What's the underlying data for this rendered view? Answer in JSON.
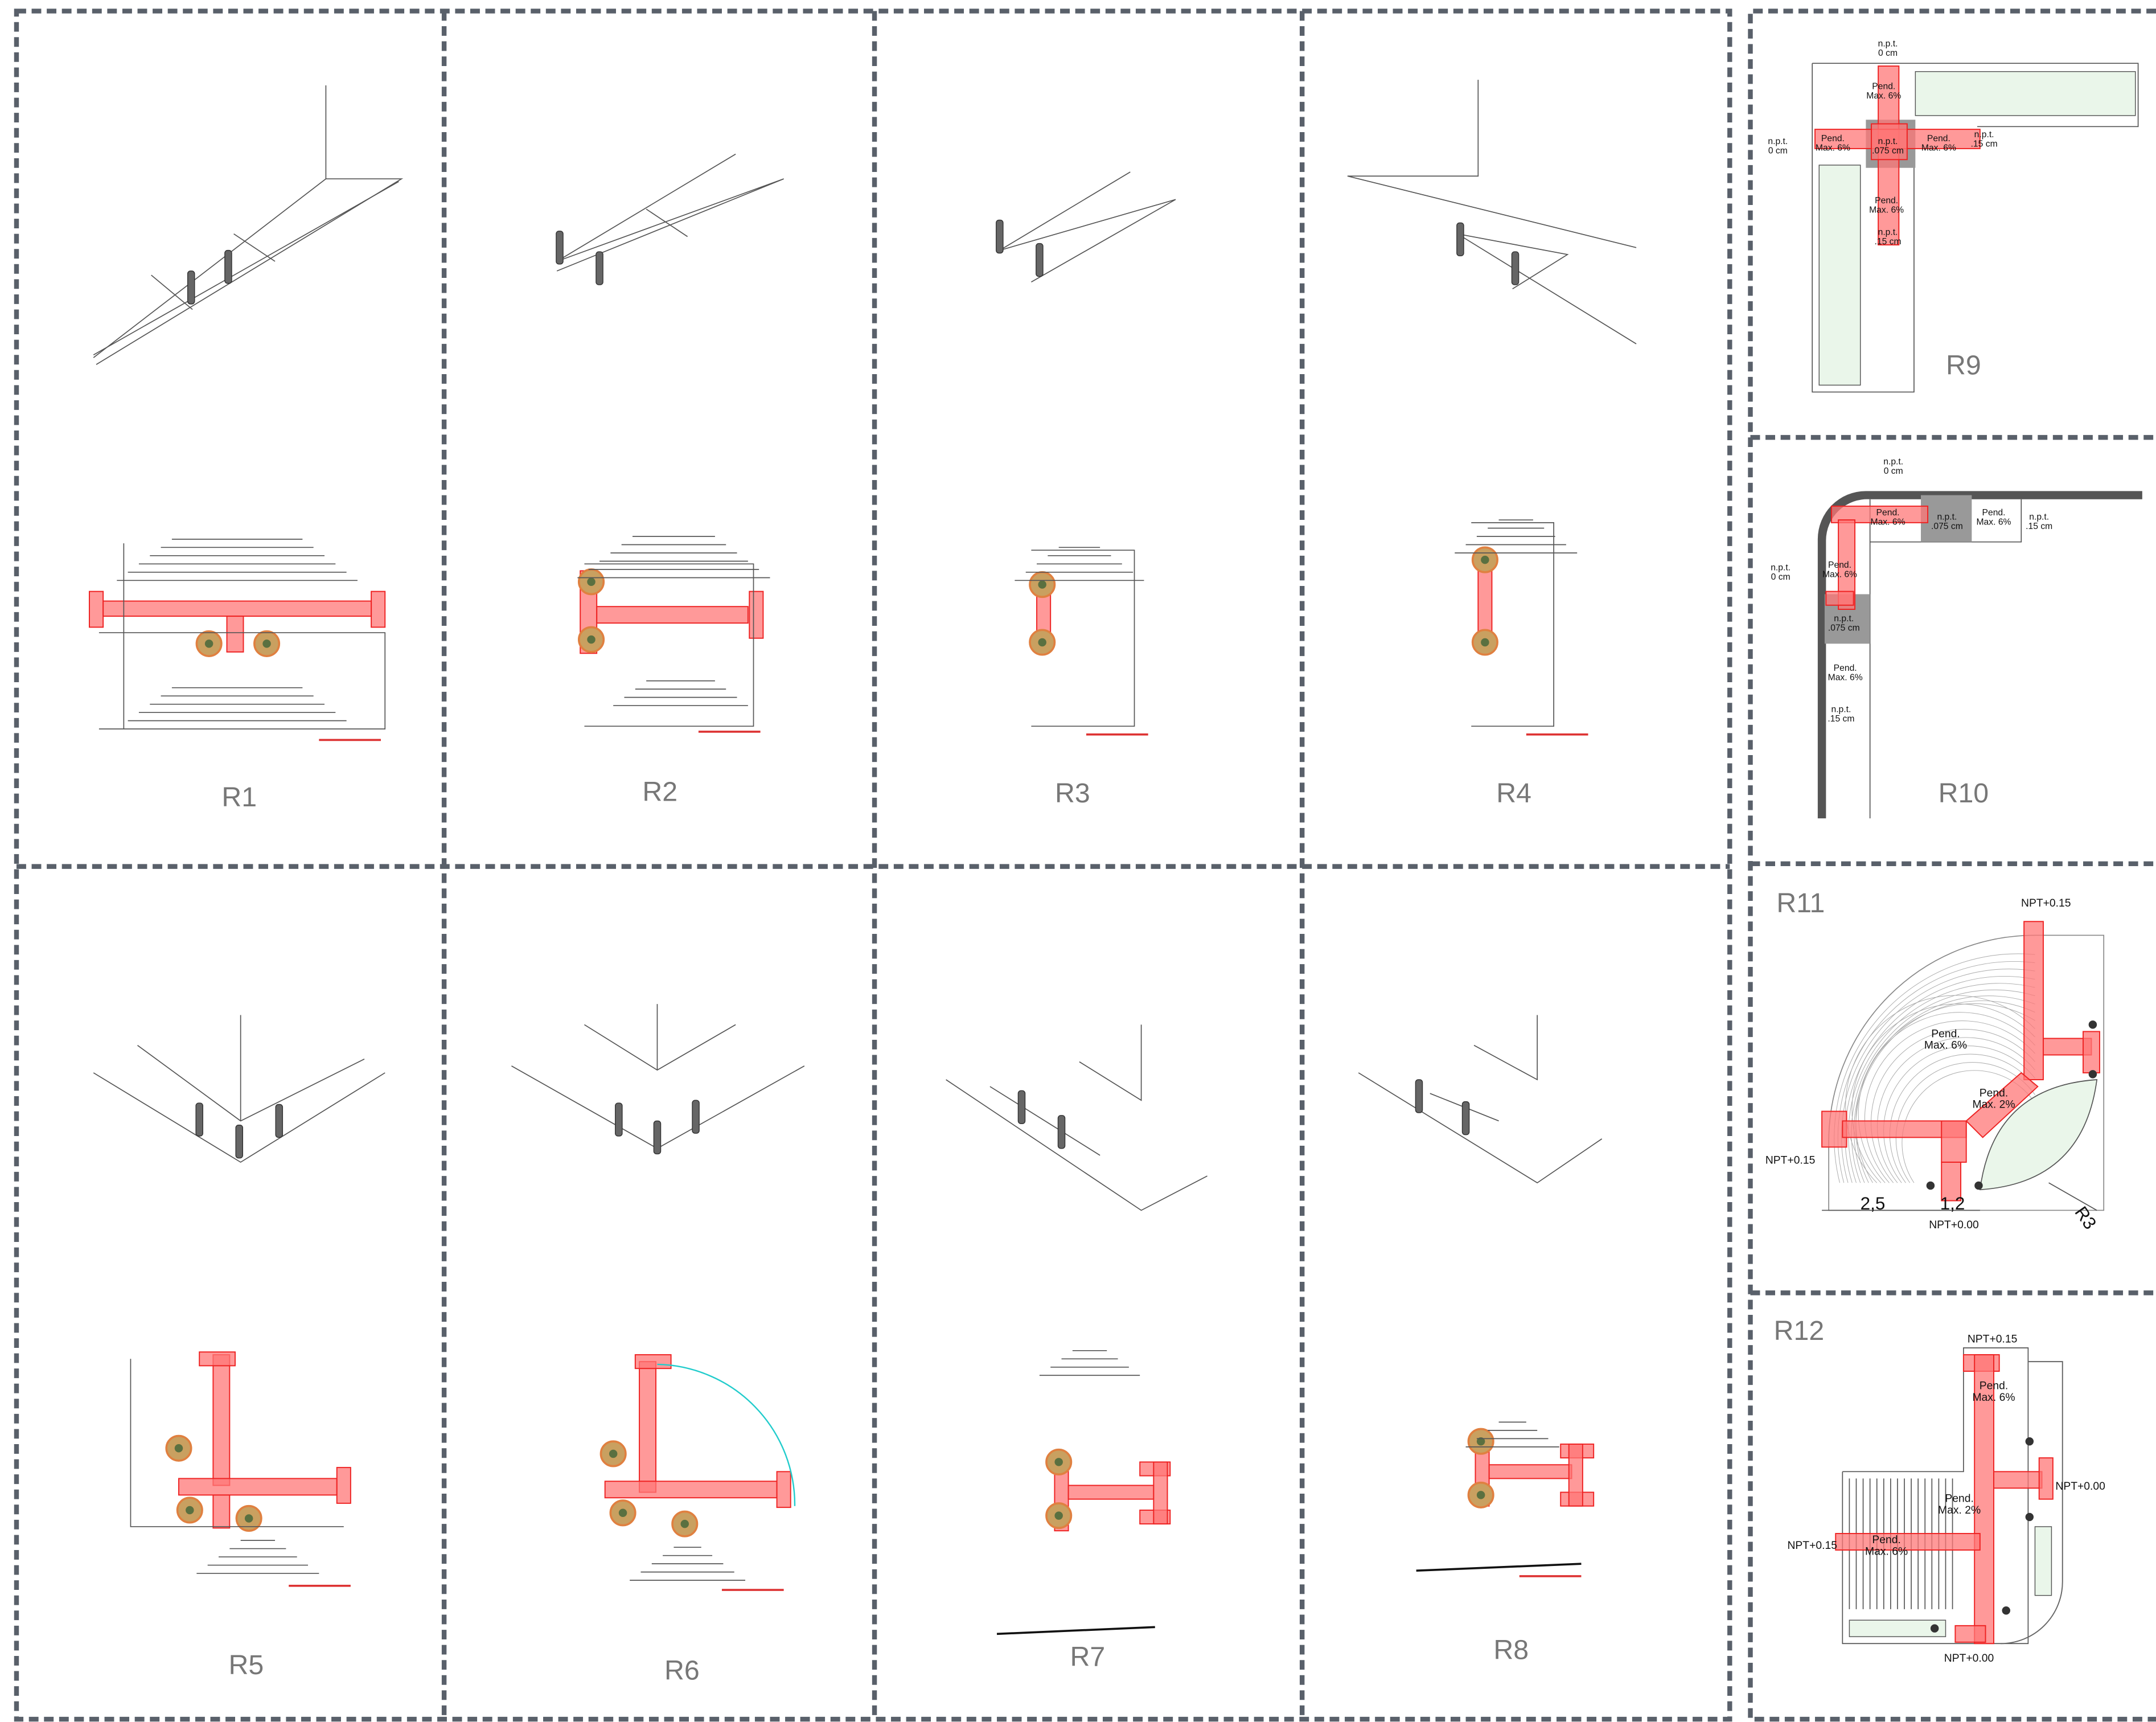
{
  "panels": [
    {
      "label": "R1"
    },
    {
      "label": "R2"
    },
    {
      "label": "R3"
    },
    {
      "label": "R4"
    },
    {
      "label": "R5"
    },
    {
      "label": "R6"
    },
    {
      "label": "R7"
    },
    {
      "label": "R8"
    },
    {
      "label": "R9",
      "notes": [
        [
          "n.p.t.",
          "0 cm"
        ],
        [
          "Pend.",
          "Max. 6%"
        ],
        [
          "Pend.",
          "Max. 6%"
        ],
        [
          "n.p.t.",
          ".075 cm"
        ],
        [
          "Pend.",
          "Max. 6%"
        ],
        [
          "n.p.t.",
          "0 cm"
        ],
        [
          "n.p.t.",
          ".15 cm"
        ],
        [
          "Pend.",
          "Max. 6%"
        ],
        [
          "n.p.t.",
          ".15 cm"
        ]
      ]
    },
    {
      "label": "R10",
      "notes": [
        [
          "n.p.t.",
          "0 cm"
        ],
        [
          "Pend.",
          "Max. 6%"
        ],
        [
          "n.p.t.",
          ".075 cm"
        ],
        [
          "Pend.",
          "Max. 6%"
        ],
        [
          "n.p.t.",
          ".15 cm"
        ],
        [
          "n.p.t.",
          "0 cm"
        ],
        [
          "Pend.",
          "Max. 6%"
        ],
        [
          "n.p.t.",
          ".075 cm"
        ],
        [
          "Pend.",
          "Max. 6%"
        ],
        [
          "n.p.t.",
          ".15 cm"
        ]
      ]
    },
    {
      "label": "R11",
      "notes": [
        [
          "NPT+0.15"
        ],
        [
          "Pend.",
          "Max. 6%"
        ],
        [
          "Pend.",
          "Max. 2%"
        ],
        [
          "NPT+0.15"
        ],
        [
          "2,5"
        ],
        [
          "1,2"
        ],
        [
          "NPT+0.00"
        ],
        [
          "R3"
        ]
      ]
    },
    {
      "label": "R12",
      "notes": [
        [
          "NPT+0.15"
        ],
        [
          "Pend.",
          "Max. 6%"
        ],
        [
          "Pend.",
          "Max. 2%"
        ],
        [
          "NPT+0.00"
        ],
        [
          "NPT+0.15"
        ],
        [
          "Pend.",
          "Max. 6%"
        ],
        [
          "NPT+0.00"
        ]
      ]
    }
  ]
}
